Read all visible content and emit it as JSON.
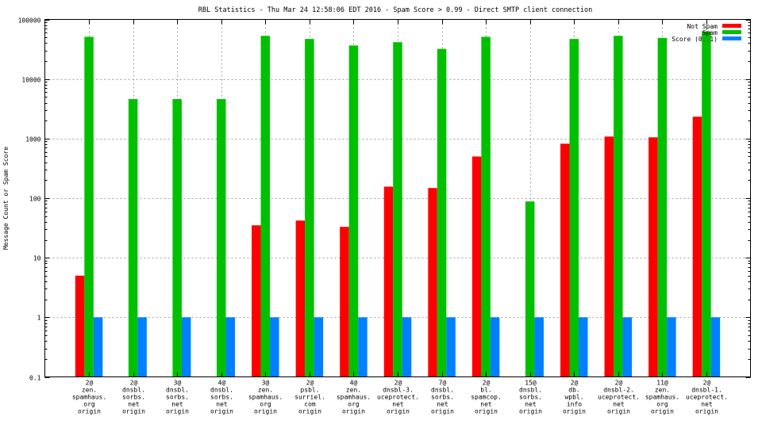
{
  "chart_data": {
    "type": "bar",
    "title": "RBL Statistics - Thu Mar 24 12:58:06 EDT 2016 - Spam Score > 0.99 - Direct SMTP client connection",
    "xlabel": "",
    "ylabel": "Message Count or Spam Score",
    "yscale": "log",
    "ylim": [
      0.1,
      100000
    ],
    "yticks": [
      {
        "value": 0.1,
        "label": "0.1"
      },
      {
        "value": 1,
        "label": "1"
      },
      {
        "value": 10,
        "label": "10"
      },
      {
        "value": 100,
        "label": "100"
      },
      {
        "value": 1000,
        "label": "1000"
      },
      {
        "value": 10000,
        "label": "10000"
      },
      {
        "value": 100000,
        "label": "100000"
      }
    ],
    "grid": true,
    "legend_position": "top-right",
    "categories": [
      [
        "2@",
        "zen.",
        "spamhaus.",
        "org",
        "origin"
      ],
      [
        "2@",
        "dnsbl.",
        "sorbs.",
        "net",
        "origin"
      ],
      [
        "3@",
        "dnsbl.",
        "sorbs.",
        "net",
        "origin"
      ],
      [
        "4@",
        "dnsbl.",
        "sorbs.",
        "net",
        "origin"
      ],
      [
        "3@",
        "zen.",
        "spamhaus.",
        "org",
        "origin"
      ],
      [
        "2@",
        "psbl.",
        "surriel.",
        "com",
        "origin"
      ],
      [
        "4@",
        "zen.",
        "spamhaus.",
        "org",
        "origin"
      ],
      [
        "2@",
        "dnsbl-3.",
        "uceprotect.",
        "net",
        "origin"
      ],
      [
        "7@",
        "dnsbl.",
        "sorbs.",
        "net",
        "origin"
      ],
      [
        "2@",
        "bl.",
        "spamcop.",
        "net",
        "origin"
      ],
      [
        "15@",
        "dnsbl.",
        "sorbs.",
        "net",
        "origin"
      ],
      [
        "2@",
        "db.",
        "wpbl.",
        "info",
        "origin"
      ],
      [
        "2@",
        "dnsbl-2.",
        "uceprotect.",
        "net",
        "origin"
      ],
      [
        "11@",
        "zen.",
        "spamhaus.",
        "org",
        "origin"
      ],
      [
        "2@",
        "dnsbl-1.",
        "uceprotect.",
        "net",
        "origin"
      ]
    ],
    "series": [
      {
        "name": "Not Spam",
        "color": "#ff0000",
        "values": [
          5,
          null,
          null,
          null,
          35,
          42,
          33,
          156,
          148,
          500,
          null,
          820,
          1080,
          1050,
          2330
        ]
      },
      {
        "name": "Spam",
        "color": "#00c000",
        "values": [
          51000,
          4600,
          4600,
          4600,
          53000,
          47000,
          36500,
          41500,
          32000,
          51000,
          88,
          47000,
          53000,
          49000,
          63000
        ]
      },
      {
        "name": "Score (0..1)",
        "color": "#0080ff",
        "values": [
          1,
          1,
          1,
          1,
          1,
          1,
          1,
          1,
          1,
          1,
          1,
          1,
          1,
          1,
          1
        ]
      }
    ]
  }
}
